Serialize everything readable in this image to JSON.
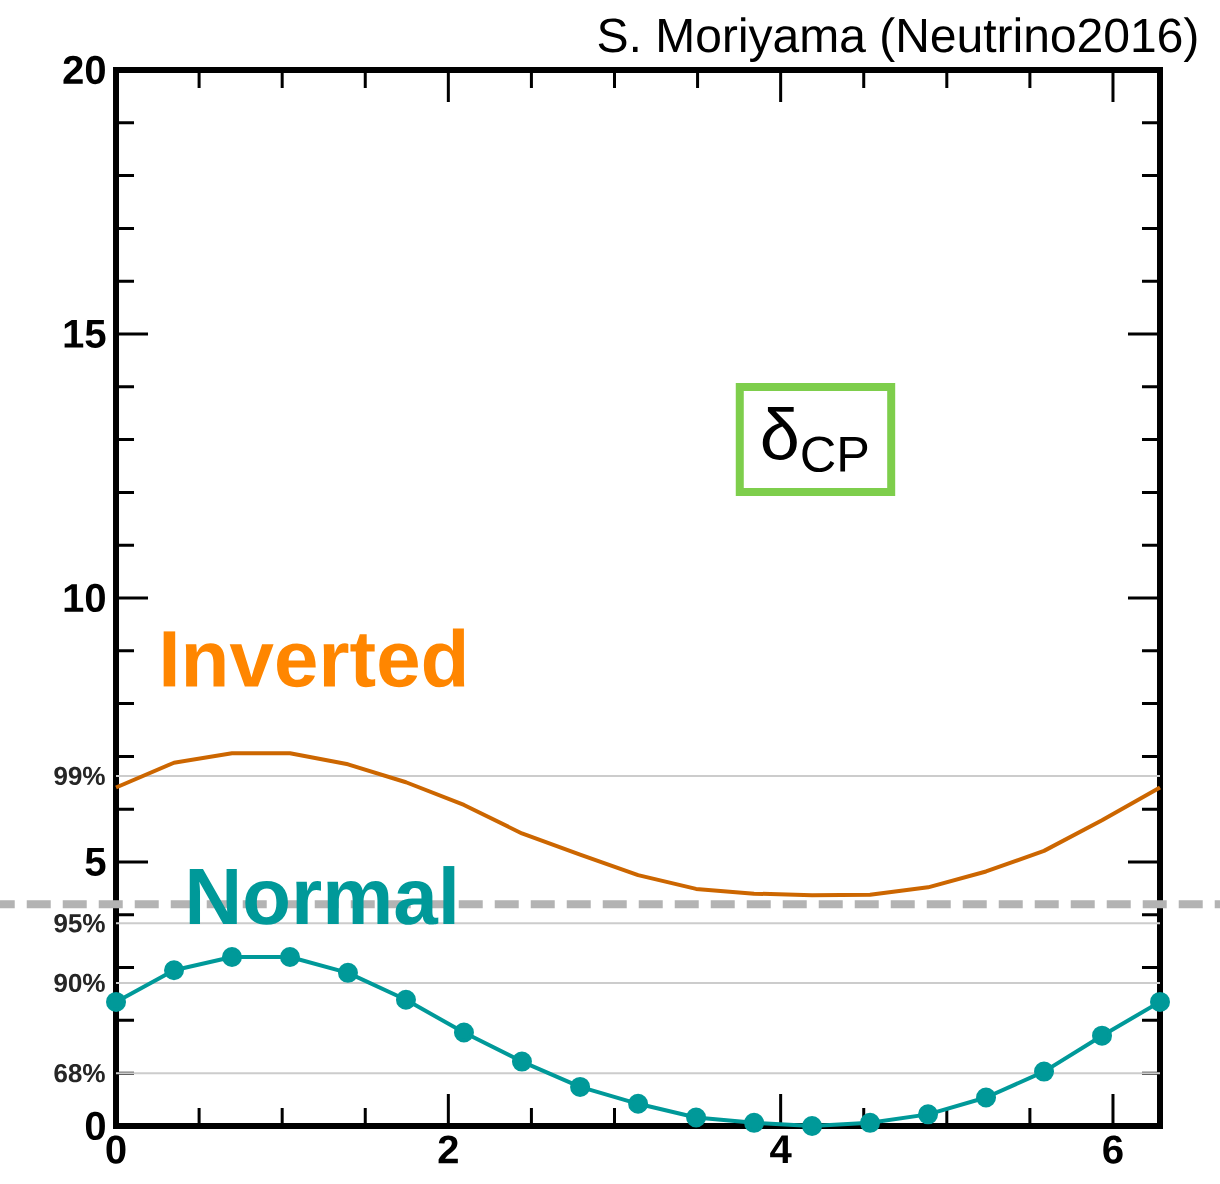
{
  "chart_data": {
    "type": "line",
    "title": "S. Moriyama (Neutrino2016)",
    "annotations": [
      "δ$_{CP}$",
      "68%",
      "90%",
      "95%",
      "99%"
    ],
    "x": [
      0,
      0.349,
      0.698,
      1.047,
      1.396,
      1.745,
      2.094,
      2.443,
      2.793,
      3.142,
      3.491,
      3.84,
      4.189,
      4.538,
      4.887,
      5.236,
      5.585,
      5.934,
      6.283
    ],
    "series": [
      {
        "name": "Inverted",
        "color": "#cc6600",
        "marker": "none",
        "values": [
          6.41,
          6.88,
          7.06,
          7.06,
          6.85,
          6.51,
          6.08,
          5.54,
          5.14,
          4.75,
          4.49,
          4.4,
          4.37,
          4.38,
          4.52,
          4.82,
          5.21,
          5.79,
          6.41
        ]
      },
      {
        "name": "Normal",
        "color": "#009999",
        "marker": "circle",
        "values": [
          2.35,
          2.95,
          3.2,
          3.2,
          2.9,
          2.39,
          1.77,
          1.22,
          0.74,
          0.42,
          0.16,
          0.06,
          0.0,
          0.06,
          0.22,
          0.54,
          1.03,
          1.71,
          2.35
        ]
      }
    ],
    "xlim": [
      0,
      6.283
    ],
    "ylim": [
      0,
      20
    ],
    "xticks": [
      0,
      2,
      4,
      6
    ],
    "yticks": [
      0,
      5,
      10,
      15,
      20
    ],
    "ref_lines": [
      {
        "axis": "y",
        "value": 1.0,
        "color": "#cccccc"
      },
      {
        "axis": "y",
        "value": 2.71,
        "color": "#cccccc"
      },
      {
        "axis": "y",
        "value": 3.84,
        "color": "#cccccc"
      },
      {
        "axis": "y",
        "value": 6.63,
        "color": "#cccccc"
      },
      {
        "axis": "y",
        "value": 4.2,
        "color": "#b3b3b3",
        "line_style": "dashed"
      }
    ],
    "grid": false,
    "line_style": "solid"
  }
}
